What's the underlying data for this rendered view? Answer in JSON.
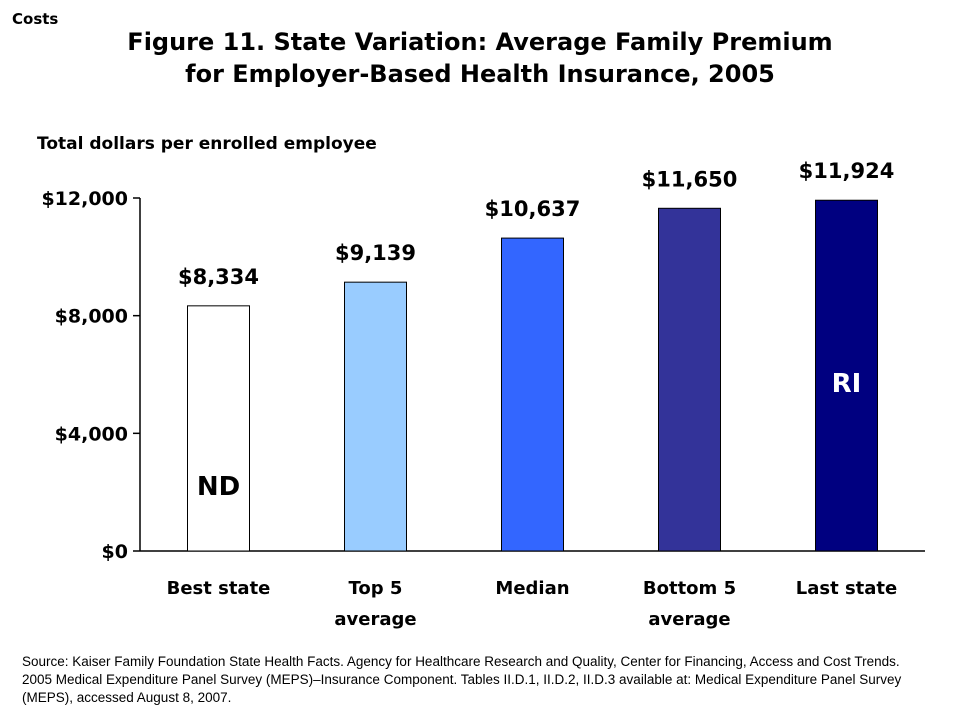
{
  "corner_tag": "Costs",
  "title_line1": "Figure 11. State Variation: Average Family Premium",
  "title_line2": "for Employer-Based Health Insurance, 2005",
  "source": "Source: Kaiser Family Foundation State Health Facts. Agency for Healthcare Research and Quality, Center for Financing, Access and Cost Trends. 2005 Medical Expenditure Panel Survey (MEPS)–Insurance Component. Tables II.D.1, II.D.2, II.D.3 available at: Medical Expenditure Panel Survey (MEPS), accessed August 8, 2007.",
  "chart_data": {
    "type": "bar",
    "ylabel": "Total dollars per enrolled employee",
    "ylim": [
      0,
      12000
    ],
    "yticks": [
      {
        "value": 0,
        "label": "$0"
      },
      {
        "value": 4000,
        "label": "$4,000"
      },
      {
        "value": 8000,
        "label": "$8,000"
      },
      {
        "value": 12000,
        "label": "$12,000"
      }
    ],
    "grid": false,
    "legend": "none",
    "categories": [
      [
        "Best state"
      ],
      [
        "Top 5",
        "average"
      ],
      [
        "Median"
      ],
      [
        "Bottom 5",
        "average"
      ],
      [
        "Last state"
      ]
    ],
    "values": [
      8334,
      9139,
      10637,
      11650,
      11924
    ],
    "value_labels": [
      "$8,334",
      "$9,139",
      "$10,637",
      "$11,650",
      "$11,924"
    ],
    "bar_colors": [
      "#ffffff",
      "#99ccff",
      "#3366ff",
      "#333399",
      "#000080"
    ],
    "bar_annotations": [
      "ND",
      "",
      "",
      "",
      "RI"
    ],
    "annotation_colors": [
      "#000000",
      "",
      "",
      "",
      "#ffffff"
    ]
  }
}
